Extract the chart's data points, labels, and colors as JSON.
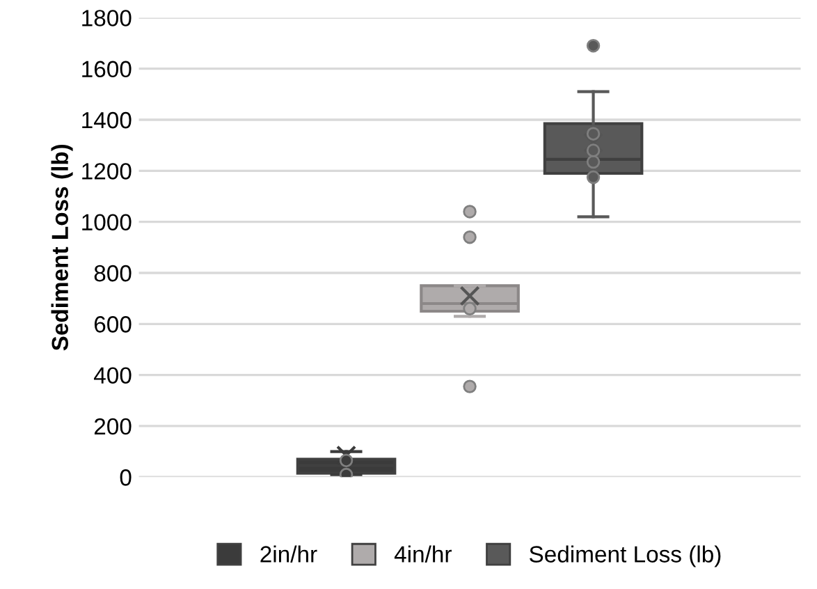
{
  "chart_data": {
    "type": "box",
    "ylabel": "Sediment Loss (lb)",
    "categories": [
      null
    ],
    "ylim": [
      0,
      1800
    ],
    "yticks": [
      0,
      200,
      400,
      600,
      800,
      1000,
      1200,
      1400,
      1600,
      1800
    ],
    "grid": "y",
    "legend": "bottom",
    "tick_labels": "y",
    "series": [
      {
        "name": "2in/hr",
        "color": "#3b3b3b",
        "boxes": [
          {
            "low": 10,
            "q1": 15,
            "median": 45,
            "q3": 70,
            "high": 100,
            "mean": 85,
            "outliers": [
              10,
              65
            ]
          }
        ]
      },
      {
        "name": "4in/hr",
        "color": "#afabab",
        "boxes": [
          {
            "low": 630,
            "q1": 650,
            "median": 680,
            "q3": 750,
            "high": 750,
            "mean": 710,
            "outliers": [
              355,
              660,
              940,
              1040
            ]
          }
        ]
      },
      {
        "name": "Sediment Loss (lb)",
        "color": "#595959",
        "boxes": [
          {
            "low": 1020,
            "q1": 1190,
            "median": 1245,
            "q3": 1385,
            "high": 1510,
            "mean": 1310,
            "outliers": [
              1175,
              1235,
              1280,
              1345,
              1690
            ]
          }
        ]
      }
    ]
  }
}
